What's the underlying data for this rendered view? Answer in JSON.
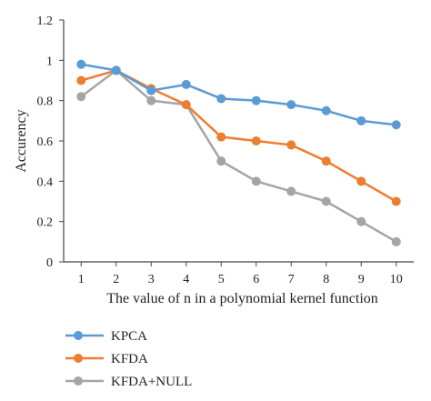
{
  "chart_data": {
    "type": "line",
    "xlabel": "The value of n in a polynomial kernel function",
    "ylabel": "Accurency",
    "x": [
      1,
      2,
      3,
      4,
      5,
      6,
      7,
      8,
      9,
      10
    ],
    "ylim": [
      0,
      1.2
    ],
    "yticks": [
      "0",
      "0.2",
      "0.4",
      "0.6",
      "0.8",
      "1",
      "1.2"
    ],
    "grid": false,
    "legend_position": "bottom-left",
    "series": [
      {
        "name": "KPCA",
        "color": "#5b9bd5",
        "values": [
          0.98,
          0.95,
          0.85,
          0.88,
          0.81,
          0.8,
          0.78,
          0.75,
          0.7,
          0.68
        ]
      },
      {
        "name": "KFDA",
        "color": "#ed7d31",
        "values": [
          0.9,
          0.95,
          0.86,
          0.78,
          0.62,
          0.6,
          0.58,
          0.5,
          0.4,
          0.3
        ]
      },
      {
        "name": "KFDA+NULL",
        "color": "#a5a5a5",
        "values": [
          0.82,
          0.95,
          0.8,
          0.78,
          0.5,
          0.4,
          0.35,
          0.3,
          0.2,
          0.1
        ]
      }
    ]
  }
}
